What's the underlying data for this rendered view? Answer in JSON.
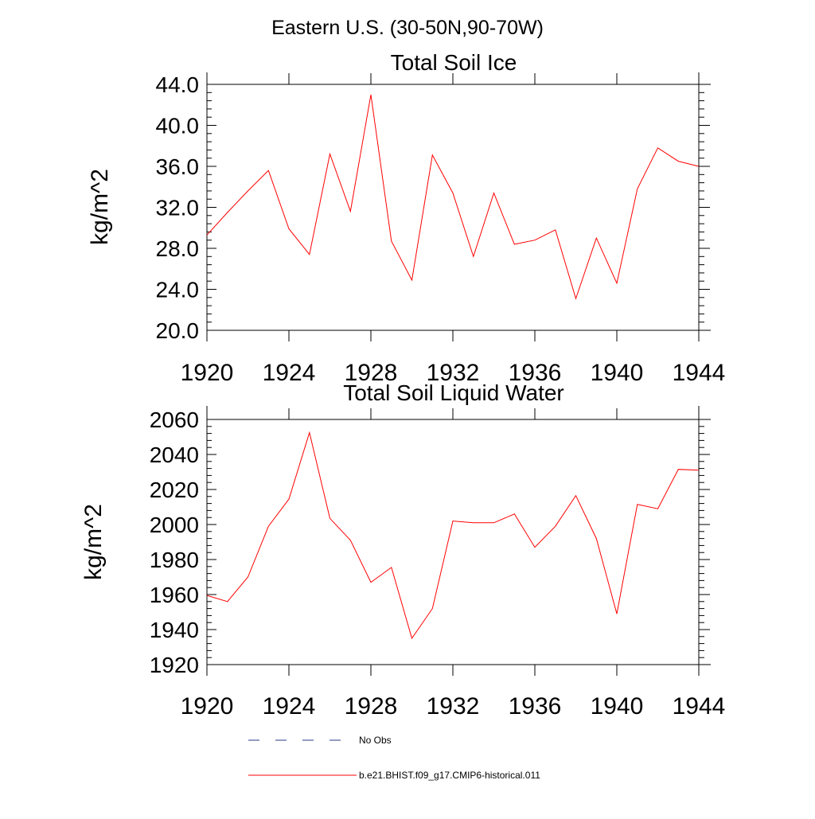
{
  "main_title": "Eastern U.S. (30-50N,90-70W)",
  "colors": {
    "model_line": "#ff0000",
    "obs_line": "#2a3a8a",
    "axes": "#000000"
  },
  "chart_data": [
    {
      "type": "line",
      "title": "Total Soil Ice",
      "ylabel": "kg/m^2",
      "xlabel": "",
      "xlim": [
        1920,
        1944
      ],
      "ylim": [
        20.0,
        44.0
      ],
      "xticks": [
        "1920",
        "1924",
        "1928",
        "1932",
        "1936",
        "1940",
        "1944"
      ],
      "yticks": [
        "20.0",
        "24.0",
        "28.0",
        "32.0",
        "36.0",
        "40.0",
        "44.0"
      ],
      "series": [
        {
          "name": "b.e21.BHIST.f09_g17.CMIP6-historical.011",
          "x": [
            1920,
            1921,
            1922,
            1923,
            1924,
            1925,
            1926,
            1927,
            1928,
            1929,
            1930,
            1931,
            1932,
            1933,
            1934,
            1935,
            1936,
            1937,
            1938,
            1939,
            1940,
            1941,
            1942,
            1943,
            1944
          ],
          "y": [
            29.3,
            31.5,
            33.6,
            35.6,
            29.9,
            27.4,
            37.2,
            31.6,
            43.0,
            28.7,
            24.9,
            37.1,
            33.4,
            27.2,
            33.4,
            28.4,
            28.8,
            29.8,
            23.1,
            29.0,
            24.6,
            33.8,
            37.8,
            36.5,
            36.0
          ]
        }
      ]
    },
    {
      "type": "line",
      "title": "Total Soil Liquid Water",
      "ylabel": "kg/m^2",
      "xlabel": "",
      "xlim": [
        1920,
        1944
      ],
      "ylim": [
        1920,
        2060
      ],
      "xticks": [
        "1920",
        "1924",
        "1928",
        "1932",
        "1936",
        "1940",
        "1944"
      ],
      "yticks": [
        "1920",
        "1940",
        "1960",
        "1980",
        "2000",
        "2020",
        "2040",
        "2060"
      ],
      "series": [
        {
          "name": "b.e21.BHIST.f09_g17.CMIP6-historical.011",
          "x": [
            1920,
            1921,
            1922,
            1923,
            1924,
            1925,
            1926,
            1927,
            1928,
            1929,
            1930,
            1931,
            1932,
            1933,
            1934,
            1935,
            1936,
            1937,
            1938,
            1939,
            1940,
            1941,
            1942,
            1943,
            1944
          ],
          "y": [
            1959.5,
            1956.0,
            1970.0,
            1999.0,
            2014.5,
            2052.5,
            2003.5,
            1991.0,
            1967.0,
            1975.5,
            1935.0,
            1952.0,
            2002.0,
            2001.0,
            2001.0,
            2006.0,
            1987.0,
            1999.0,
            2016.5,
            1992.0,
            1949.0,
            2011.5,
            2009.0,
            2031.5,
            2031.0
          ]
        }
      ]
    }
  ],
  "legend": [
    {
      "label": "No Obs",
      "style": "dashed"
    },
    {
      "label": "b.e21.BHIST.f09_g17.CMIP6-historical.011",
      "style": "solid"
    }
  ]
}
